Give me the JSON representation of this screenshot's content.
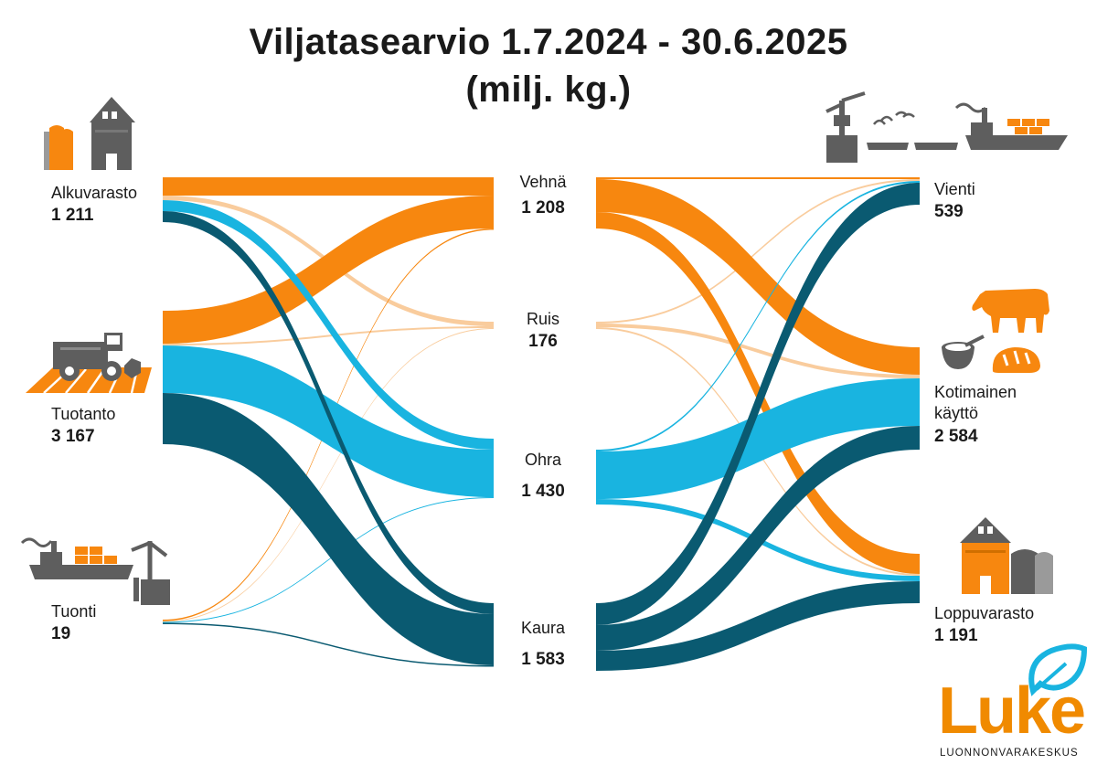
{
  "title": "Viljatasearvio 1.7.2024 - 30.6.2025",
  "unit": "(milj. kg.)",
  "colors": {
    "vehna": "#f7870f",
    "ruis": "#f9c998",
    "ohra": "#19b4e0",
    "kaura": "#0a5a71",
    "icon_gray": "#5e5e5e",
    "brand_orange": "#f08a00",
    "brand_blue": "#19b4e0"
  },
  "sources": [
    {
      "id": "alkuvarasto",
      "label": "Alkuvarasto",
      "value": "1 211"
    },
    {
      "id": "tuotanto",
      "label": "Tuotanto",
      "value": "3 167"
    },
    {
      "id": "tuonti",
      "label": "Tuonti",
      "value": "19"
    }
  ],
  "grains": [
    {
      "id": "vehna",
      "label": "Vehnä",
      "value": "1 208"
    },
    {
      "id": "ruis",
      "label": "Ruis",
      "value": "176"
    },
    {
      "id": "ohra",
      "label": "Ohra",
      "value": "1 430"
    },
    {
      "id": "kaura",
      "label": "Kaura",
      "value": "1 583"
    }
  ],
  "uses": [
    {
      "id": "vienti",
      "label": "Vienti",
      "value": "539"
    },
    {
      "id": "kotimainen",
      "label": "Kotimainen\nkäyttö",
      "value": "2 584"
    },
    {
      "id": "loppuvarasto",
      "label": "Loppuvarasto",
      "value": "1 191"
    }
  ],
  "icons": [
    "warehouse-silo-icon",
    "combine-harvester-icon",
    "cargo-ship-crane-icon",
    "port-crane-ships-icon",
    "cow-icon",
    "bowl-icon",
    "bread-icon"
  ],
  "logo": {
    "word": "Luke",
    "subtitle": "LUONNONVARAKESKUS"
  }
}
